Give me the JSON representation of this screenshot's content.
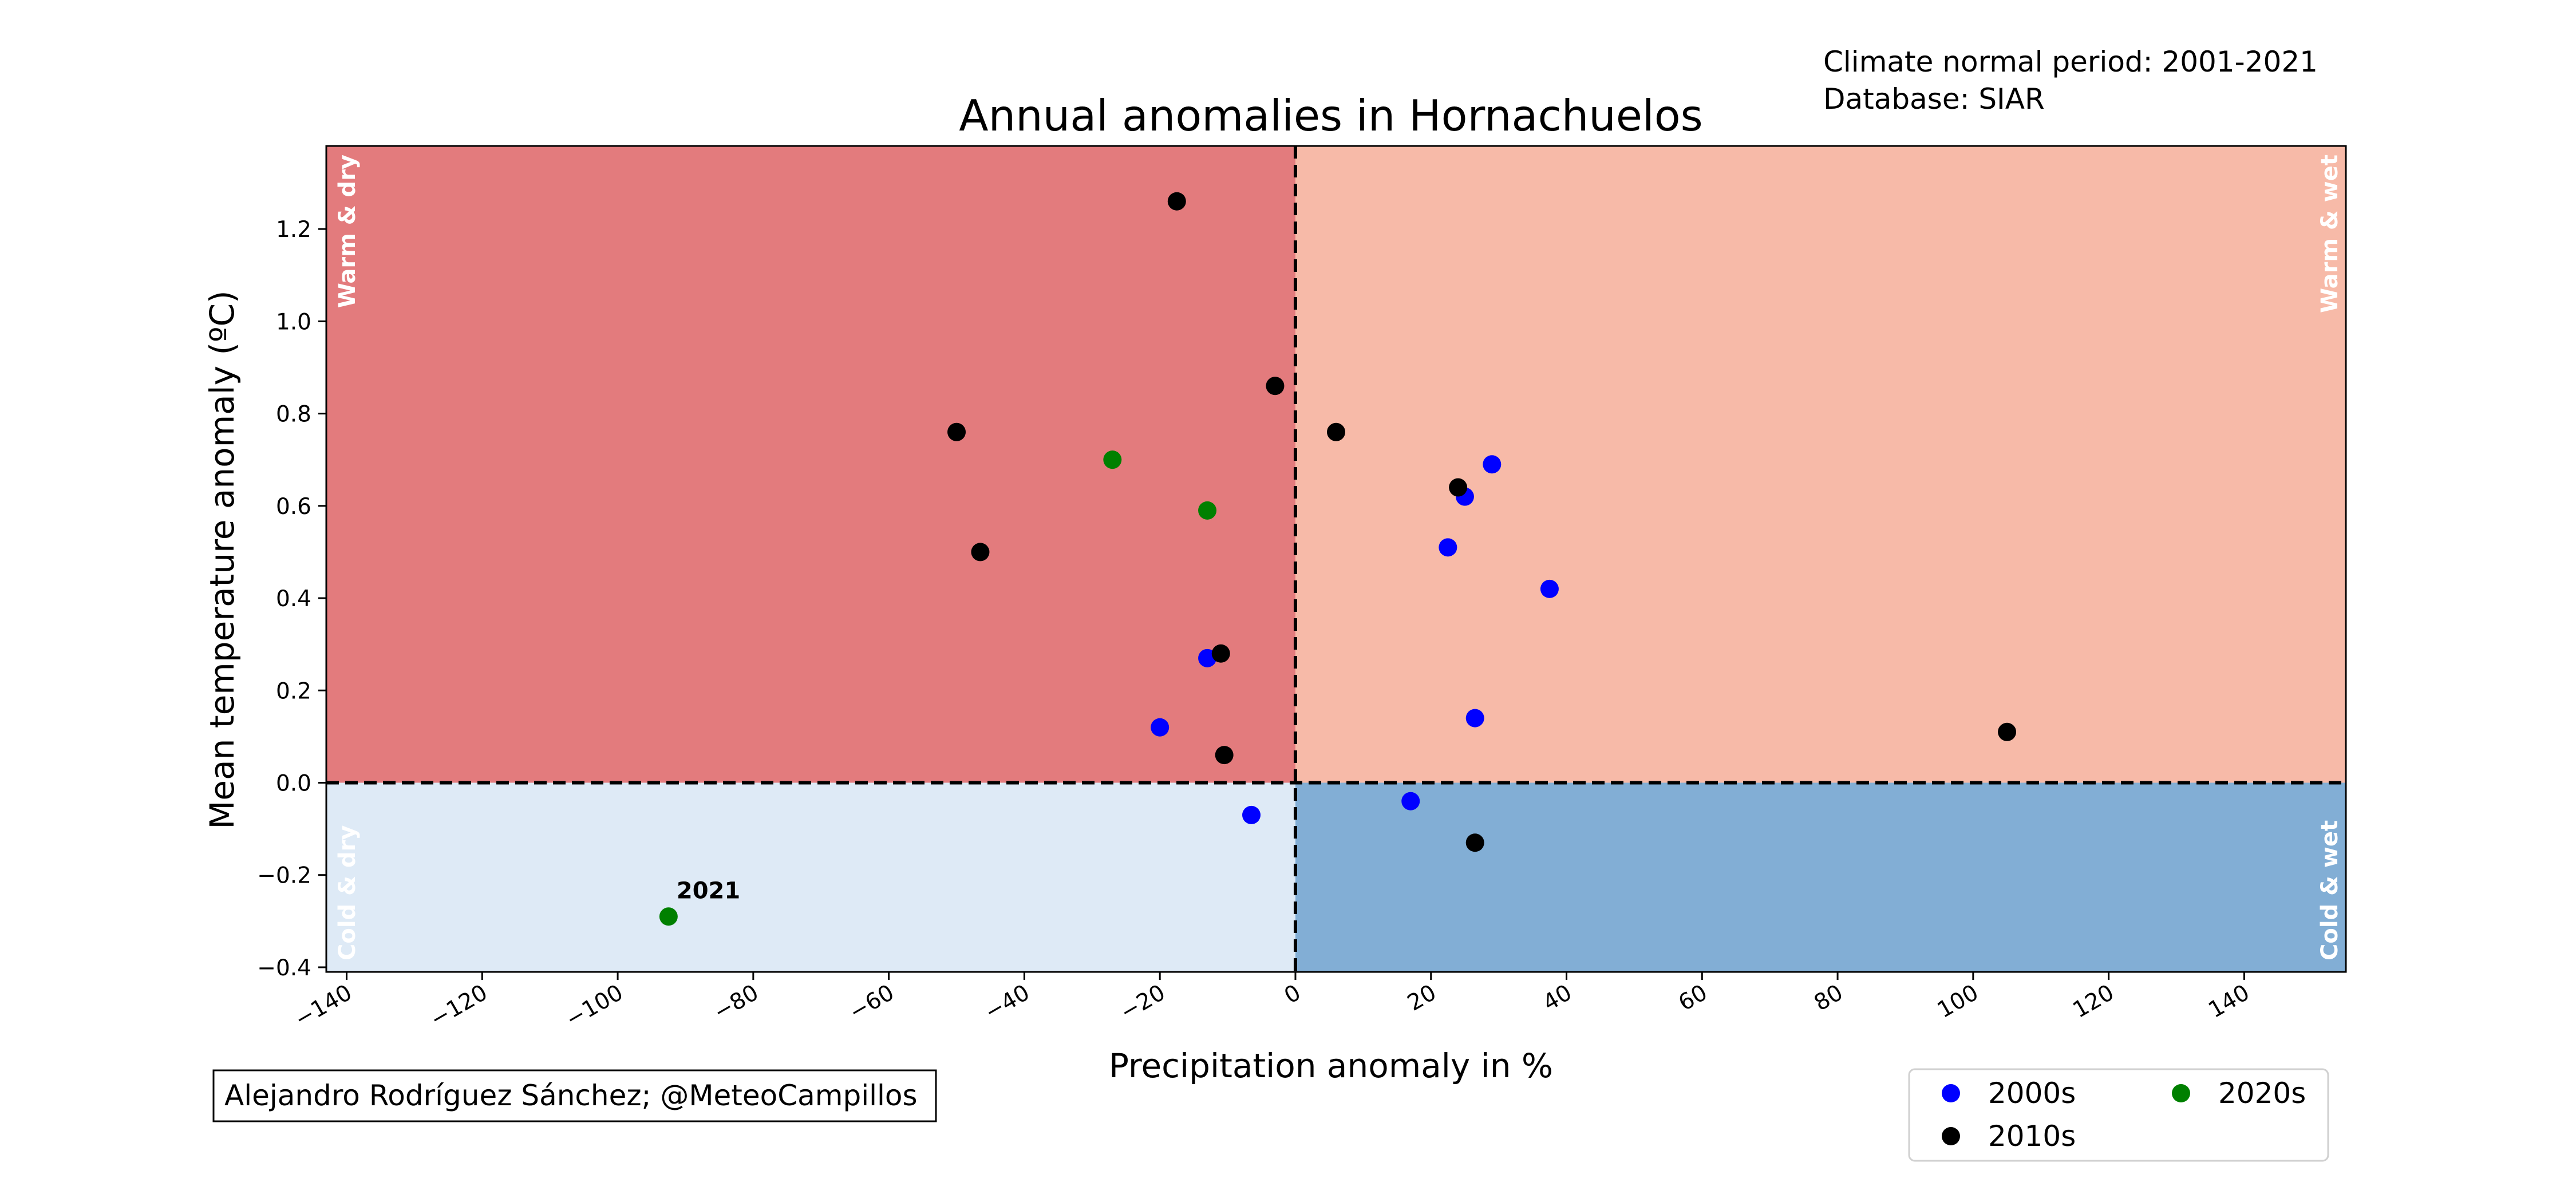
{
  "chart_data": {
    "type": "scatter",
    "title": "Annual anomalies in Hornachuelos",
    "xlabel": "Precipitation anomaly in %",
    "ylabel": "Mean temperature anomaly (ºC)",
    "xlim": [
      -143,
      155
    ],
    "ylim": [
      -0.41,
      1.38
    ],
    "xticks": [
      -140,
      -120,
      -100,
      -80,
      -60,
      -40,
      -20,
      0,
      20,
      40,
      60,
      80,
      100,
      120,
      140
    ],
    "yticks": [
      -0.4,
      -0.2,
      0.0,
      0.2,
      0.4,
      0.6,
      0.8,
      1.0,
      1.2
    ],
    "grid": false,
    "quadrants": [
      {
        "label": "Warm & dry",
        "color": "#e37b7d"
      },
      {
        "label": "Warm & wet",
        "color": "#f7baa8"
      },
      {
        "label": "Cold & dry",
        "color": "#deeaf6"
      },
      {
        "label": "Cold & wet",
        "color": "#82aed5"
      }
    ],
    "series": [
      {
        "name": "2000s",
        "color": "#0000ff",
        "points": [
          [
            -20,
            0.12
          ],
          [
            -13,
            0.27
          ],
          [
            -6.5,
            -0.07
          ],
          [
            17,
            -0.04
          ],
          [
            22.5,
            0.51
          ],
          [
            25,
            0.62
          ],
          [
            26.5,
            0.14
          ],
          [
            29,
            0.69
          ],
          [
            37.5,
            0.42
          ]
        ]
      },
      {
        "name": "2010s",
        "color": "#000000",
        "points": [
          [
            -50,
            0.76
          ],
          [
            -46.5,
            0.5
          ],
          [
            -17.5,
            1.26
          ],
          [
            -11,
            0.28
          ],
          [
            -10.5,
            0.06
          ],
          [
            -3,
            0.86
          ],
          [
            6,
            0.76
          ],
          [
            24,
            0.64
          ],
          [
            26.5,
            -0.13
          ],
          [
            105,
            0.11
          ]
        ]
      },
      {
        "name": "2020s",
        "color": "#008000",
        "points": [
          [
            -92.5,
            -0.29
          ],
          [
            -27,
            0.7
          ],
          [
            -13,
            0.59
          ]
        ]
      }
    ],
    "annotations": [
      {
        "text": "2021",
        "x": -92.5,
        "y": -0.29
      }
    ],
    "legend": {
      "placement": "lower-right",
      "columns": 2
    },
    "info_lines": [
      "Climate normal period: 2001-2021",
      "Database: SIAR"
    ],
    "credit": "Alejandro Rodríguez Sánchez; @MeteoCampillos"
  }
}
